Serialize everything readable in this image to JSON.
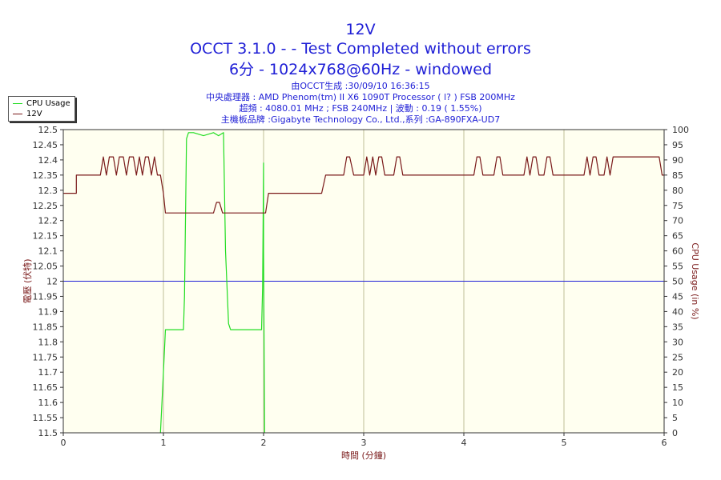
{
  "chart_data": {
    "type": "line",
    "title": "12V",
    "subtitle_lines": [
      "OCCT 3.1.0 -  - Test Completed without errors",
      "6分 - 1024x768@60Hz - windowed"
    ],
    "info_lines": [
      "由OCCT生成 :30/09/10 16:36:15",
      "中央處理器 : AMD Phenom(tm) II X6 1090T Processor (   l? ) FSB 200MHz",
      "超頻 : 4080.01 MHz ; FSB 240MHz | 波動 : 0.19 ( 1.55%)",
      "主機板品牌 :Gigabyte Technology Co., Ltd.,系列 :GA-890FXA-UD7"
    ],
    "xlabel": "時間 (分鐘)",
    "ylabel_left": "電壓 (伏特)",
    "ylabel_right": "CPU Usage (in %)",
    "xlim": [
      0,
      6
    ],
    "ylim_left": [
      11.5,
      12.5
    ],
    "ylim_right": [
      0,
      100
    ],
    "x_ticks": [
      "0",
      "1",
      "2",
      "3",
      "4",
      "5",
      "6"
    ],
    "y_ticks_left": [
      "12.5",
      "12.45",
      "12.4",
      "12.35",
      "12.3",
      "12.25",
      "12.2",
      "12.15",
      "12.1",
      "12.05",
      "12",
      "11.95",
      "11.9",
      "11.85",
      "11.8",
      "11.75",
      "11.7",
      "11.65",
      "11.6",
      "11.55",
      "11.5"
    ],
    "y_ticks_right": [
      "100",
      "95",
      "90",
      "85",
      "80",
      "75",
      "70",
      "65",
      "60",
      "55",
      "50",
      "45",
      "40",
      "35",
      "30",
      "25",
      "20",
      "15",
      "10",
      "5",
      "0"
    ],
    "grid": "vertical",
    "legend_position": "top-left",
    "reference_line": {
      "axis": "left",
      "value": 12.0,
      "color": "#1f1fd6"
    },
    "colors": {
      "plot_bg": "#fffff0",
      "title": "#1f1fd6",
      "axis_text": "#7a1a1a",
      "grid": "#bfbf99"
    },
    "series": [
      {
        "name": "CPU Usage",
        "axis": "right",
        "color": "#22dd22",
        "x": [
          0.97,
          1.0,
          1.02,
          1.05,
          1.2,
          1.21,
          1.22,
          1.23,
          1.25,
          1.3,
          1.4,
          1.5,
          1.55,
          1.6,
          1.6,
          1.62,
          1.65,
          1.67,
          1.7,
          1.75,
          1.8,
          1.9,
          1.95,
          1.97,
          1.98,
          1.99,
          2.0,
          2.0,
          2.01,
          2.01
        ],
        "values": [
          0,
          20,
          34,
          34,
          34,
          45,
          70,
          97,
          99,
          99,
          98,
          99,
          98,
          99,
          99,
          60,
          36,
          34,
          34,
          34,
          34,
          34,
          34,
          34,
          34,
          48,
          89,
          60,
          0,
          0
        ]
      },
      {
        "name": "12V",
        "axis": "left",
        "color": "#7a1a1a",
        "x": [
          0.0,
          0.13,
          0.13,
          0.37,
          0.4,
          0.43,
          0.46,
          0.5,
          0.53,
          0.56,
          0.6,
          0.63,
          0.66,
          0.7,
          0.73,
          0.76,
          0.79,
          0.82,
          0.85,
          0.88,
          0.91,
          0.94,
          0.97,
          1.0,
          1.02,
          1.05,
          1.5,
          1.53,
          1.56,
          1.59,
          1.62,
          2.02,
          2.05,
          2.58,
          2.62,
          2.8,
          2.83,
          2.86,
          2.9,
          3.0,
          3.03,
          3.06,
          3.09,
          3.12,
          3.15,
          3.18,
          3.21,
          3.3,
          3.33,
          3.36,
          3.39,
          4.1,
          4.13,
          4.16,
          4.19,
          4.3,
          4.33,
          4.36,
          4.39,
          4.6,
          4.63,
          4.66,
          4.69,
          4.72,
          4.75,
          4.78,
          4.8,
          4.83,
          4.86,
          4.89,
          5.2,
          5.23,
          5.26,
          5.29,
          5.32,
          5.35,
          5.38,
          5.4,
          5.43,
          5.46,
          5.49,
          5.95,
          5.98,
          6.0
        ],
        "values": [
          12.29,
          12.29,
          12.35,
          12.35,
          12.41,
          12.35,
          12.41,
          12.41,
          12.35,
          12.41,
          12.41,
          12.35,
          12.41,
          12.41,
          12.35,
          12.41,
          12.35,
          12.41,
          12.41,
          12.35,
          12.41,
          12.35,
          12.35,
          12.29,
          12.225,
          12.225,
          12.225,
          12.26,
          12.26,
          12.225,
          12.225,
          12.225,
          12.29,
          12.29,
          12.35,
          12.35,
          12.41,
          12.41,
          12.35,
          12.35,
          12.41,
          12.35,
          12.41,
          12.35,
          12.41,
          12.41,
          12.35,
          12.35,
          12.41,
          12.41,
          12.35,
          12.35,
          12.41,
          12.41,
          12.35,
          12.35,
          12.41,
          12.41,
          12.35,
          12.35,
          12.41,
          12.35,
          12.41,
          12.41,
          12.35,
          12.35,
          12.35,
          12.41,
          12.41,
          12.35,
          12.35,
          12.41,
          12.35,
          12.41,
          12.41,
          12.35,
          12.35,
          12.35,
          12.41,
          12.35,
          12.41,
          12.41,
          12.35,
          12.35
        ]
      }
    ]
  }
}
